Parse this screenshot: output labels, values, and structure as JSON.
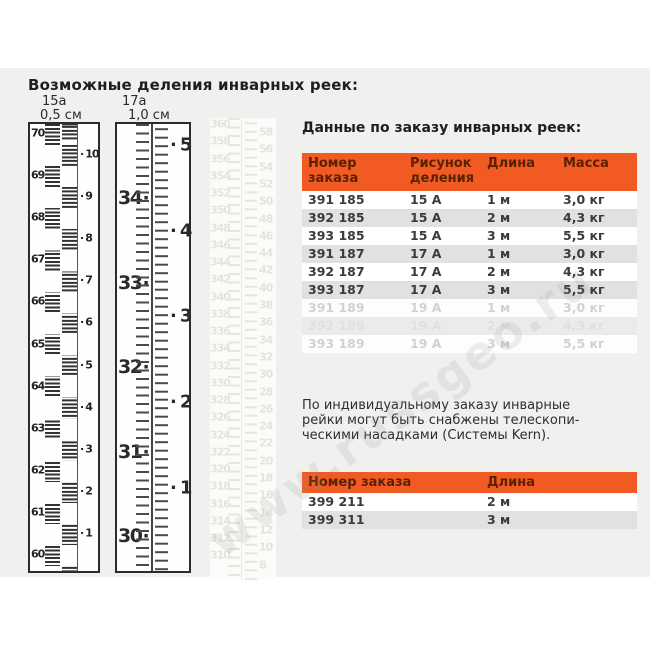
{
  "titles": {
    "left": "Возможные деления инварных реек:",
    "right": "Данные по заказу инварных реек:"
  },
  "rulers": {
    "r15a": {
      "code": "15а",
      "division": "0,5 см",
      "left_numbers": [
        70,
        69,
        68,
        67,
        66,
        65,
        64,
        63,
        62,
        61,
        60
      ],
      "right_numbers": [
        10,
        9,
        8,
        7,
        6,
        5,
        4,
        3,
        2,
        1
      ]
    },
    "r17a": {
      "code": "17а",
      "division": "1,0 см",
      "left_numbers": [
        34,
        33,
        32,
        31,
        30
      ],
      "right_numbers": [
        5,
        4,
        3,
        2,
        1
      ]
    },
    "ghost": {
      "left_numbers": [
        360,
        358,
        356,
        354,
        352,
        350,
        348,
        346,
        344,
        342,
        340,
        338,
        336,
        334,
        332,
        330,
        328,
        326,
        324,
        322,
        320,
        318,
        316,
        314,
        312,
        310
      ],
      "right_numbers": [
        58,
        56,
        54,
        52,
        50,
        48,
        46,
        44,
        42,
        40,
        38,
        36,
        34,
        32,
        30,
        28,
        26,
        24,
        22,
        20,
        18,
        16,
        14,
        12,
        10,
        8
      ]
    }
  },
  "order_table": {
    "headers": [
      "Номер заказа",
      "Рисунок деления",
      "Длина",
      "Масса"
    ],
    "rows": [
      {
        "cells": [
          "391 185",
          "15 А",
          "1 м",
          "3,0 кг"
        ]
      },
      {
        "cells": [
          "392 185",
          "15 А",
          "2 м",
          "4,3 кг"
        ]
      },
      {
        "cells": [
          "393 185",
          "15 А",
          "3 м",
          "5,5 кг"
        ]
      },
      {
        "cells": [
          "391 187",
          "17 А",
          "1 м",
          "3,0 кг"
        ]
      },
      {
        "cells": [
          "392 187",
          "17 А",
          "2 м",
          "4,3 кг"
        ]
      },
      {
        "cells": [
          "393 187",
          "17 А",
          "3 м",
          "5,5 кг"
        ]
      },
      {
        "cells": [
          "391 189",
          "19 А",
          "1 м",
          "3,0 кг"
        ],
        "faded": 1
      },
      {
        "cells": [
          "392 189",
          "19 А",
          "2 м",
          "4,3 кг"
        ],
        "faded": 2
      },
      {
        "cells": [
          "393 189",
          "19 А",
          "3 м",
          "5,5 кг"
        ],
        "faded": 1
      }
    ]
  },
  "note_lines": [
    "По индивидуальному заказу инварные",
    "рейки могут быть снабжены телескопи-",
    "ческими насадками (Системы Kern)."
  ],
  "accessory_table": {
    "headers": [
      "Номер заказа",
      "Длина"
    ],
    "rows": [
      {
        "cells": [
          "399 211",
          "2 м"
        ]
      },
      {
        "cells": [
          "399 311",
          "3 м"
        ]
      }
    ]
  },
  "watermark": {
    "text": "www.russgeo.ru"
  },
  "colors": {
    "accent_orange": "#F15A22",
    "header_text": "#5C2200",
    "panel_gray": "#F0F0EF",
    "row_alt_gray": "#E1E1E0"
  }
}
